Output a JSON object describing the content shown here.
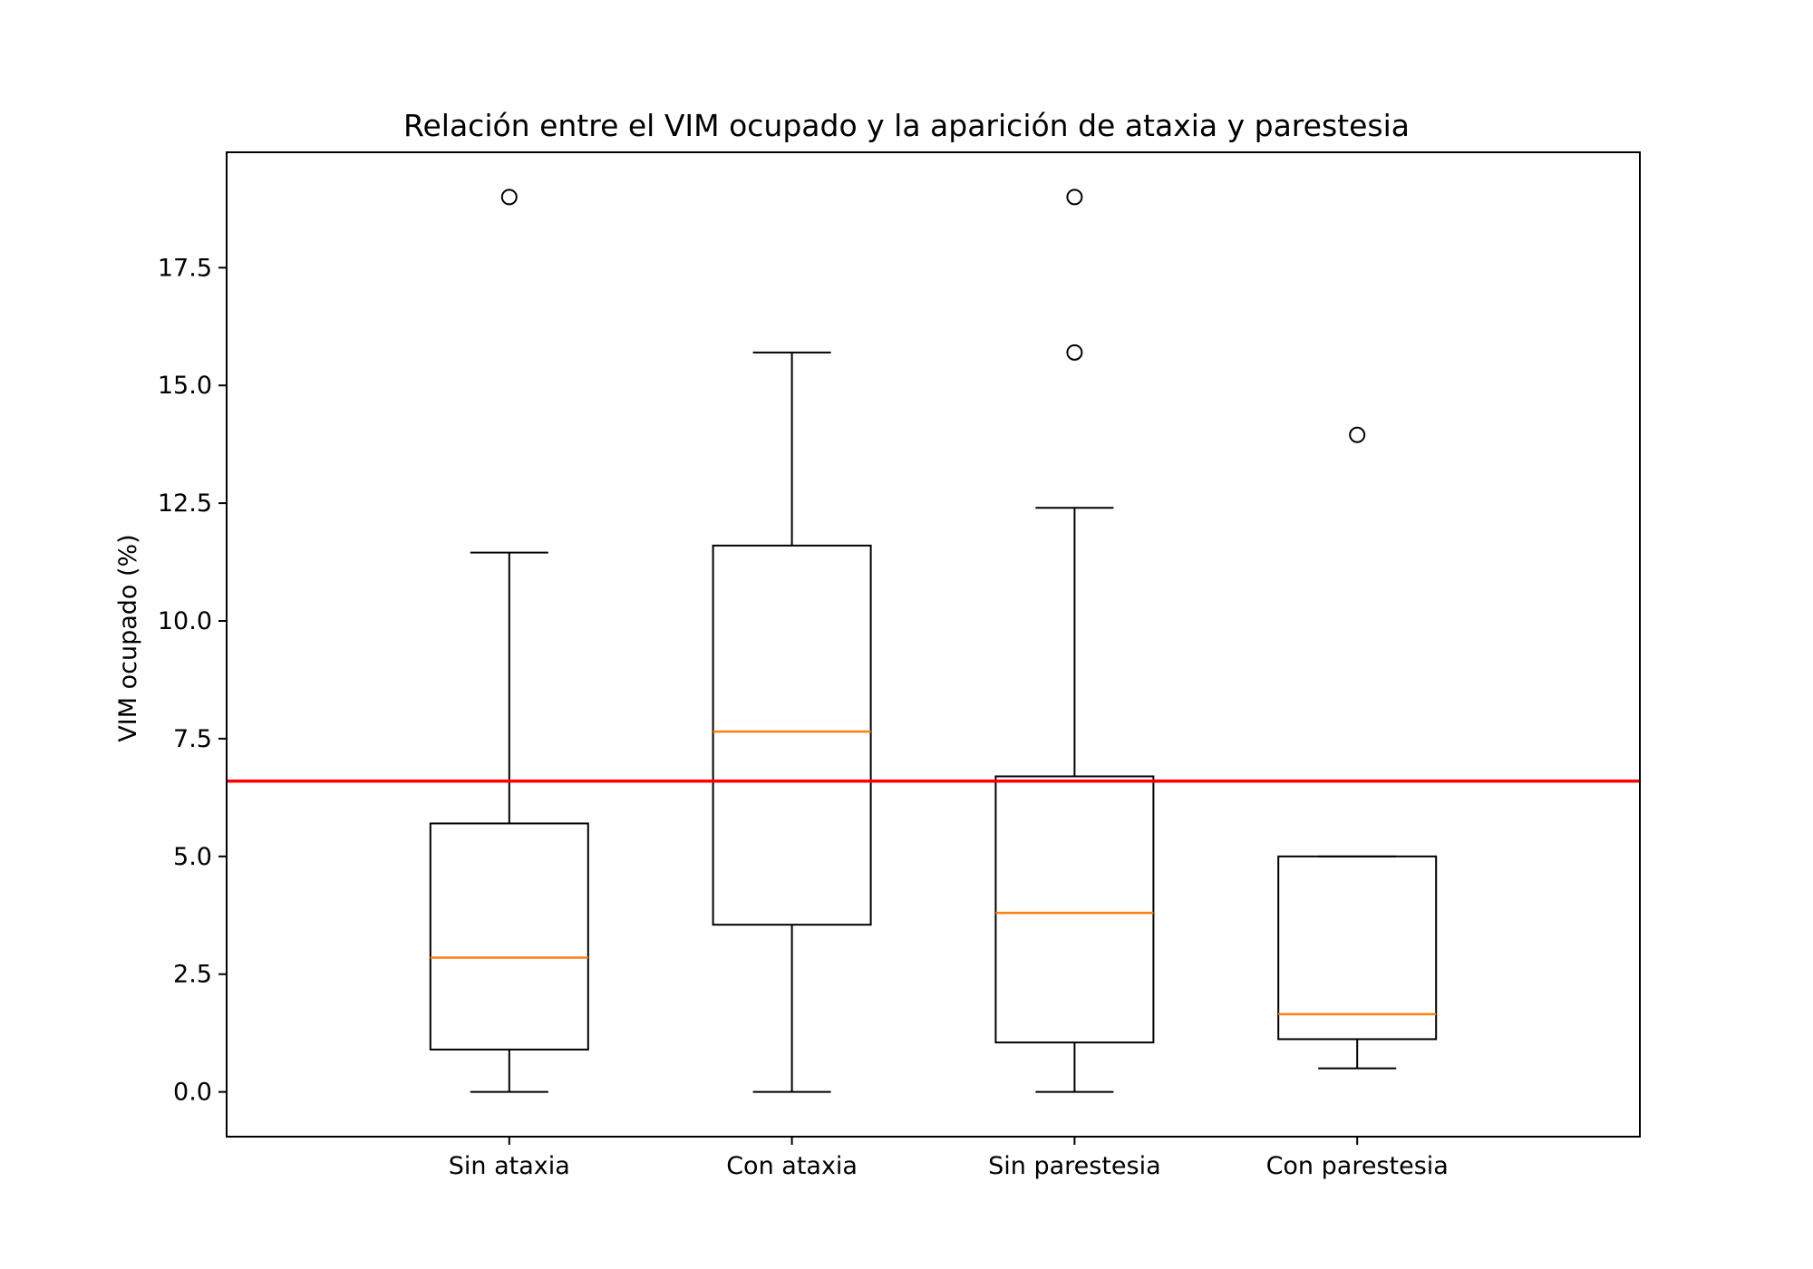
{
  "chart_data": {
    "type": "boxplot",
    "title": "Relación entre el VIM ocupado y la aparición de ataxia y parestesia",
    "xlabel": "",
    "ylabel": "VIM ocupado (%)",
    "ylim": [
      -0.95,
      19.95
    ],
    "yticks": [
      0.0,
      2.5,
      5.0,
      7.5,
      10.0,
      12.5,
      15.0,
      17.5
    ],
    "ytick_labels": [
      "0.0",
      "2.5",
      "5.0",
      "7.5",
      "10.0",
      "12.5",
      "15.0",
      "17.5"
    ],
    "categories": [
      "Sin ataxia",
      "Con ataxia",
      "Sin parestesia",
      "Con parestesia"
    ],
    "boxes": [
      {
        "category": "Sin ataxia",
        "whisker_low": 0.0,
        "q1": 0.9,
        "median": 2.85,
        "q3": 5.7,
        "whisker_high": 11.45,
        "outliers": [
          19.0
        ]
      },
      {
        "category": "Con ataxia",
        "whisker_low": 0.0,
        "q1": 3.55,
        "median": 7.65,
        "q3": 11.6,
        "whisker_high": 15.7,
        "outliers": []
      },
      {
        "category": "Sin parestesia",
        "whisker_low": 0.0,
        "q1": 1.05,
        "median": 3.8,
        "q3": 6.7,
        "whisker_high": 12.4,
        "outliers": [
          15.7,
          19.0
        ]
      },
      {
        "category": "Con parestesia",
        "whisker_low": 0.5,
        "q1": 1.12,
        "median": 1.65,
        "q3": 5.0,
        "whisker_high": 5.0,
        "outliers": [
          13.95
        ]
      }
    ],
    "reference_line": {
      "y": 6.6,
      "color": "#ff0000"
    },
    "colors": {
      "box": "#000000",
      "median": "#ff7f0e",
      "reference": "#ff0000"
    },
    "grid": false,
    "legend": "none"
  }
}
